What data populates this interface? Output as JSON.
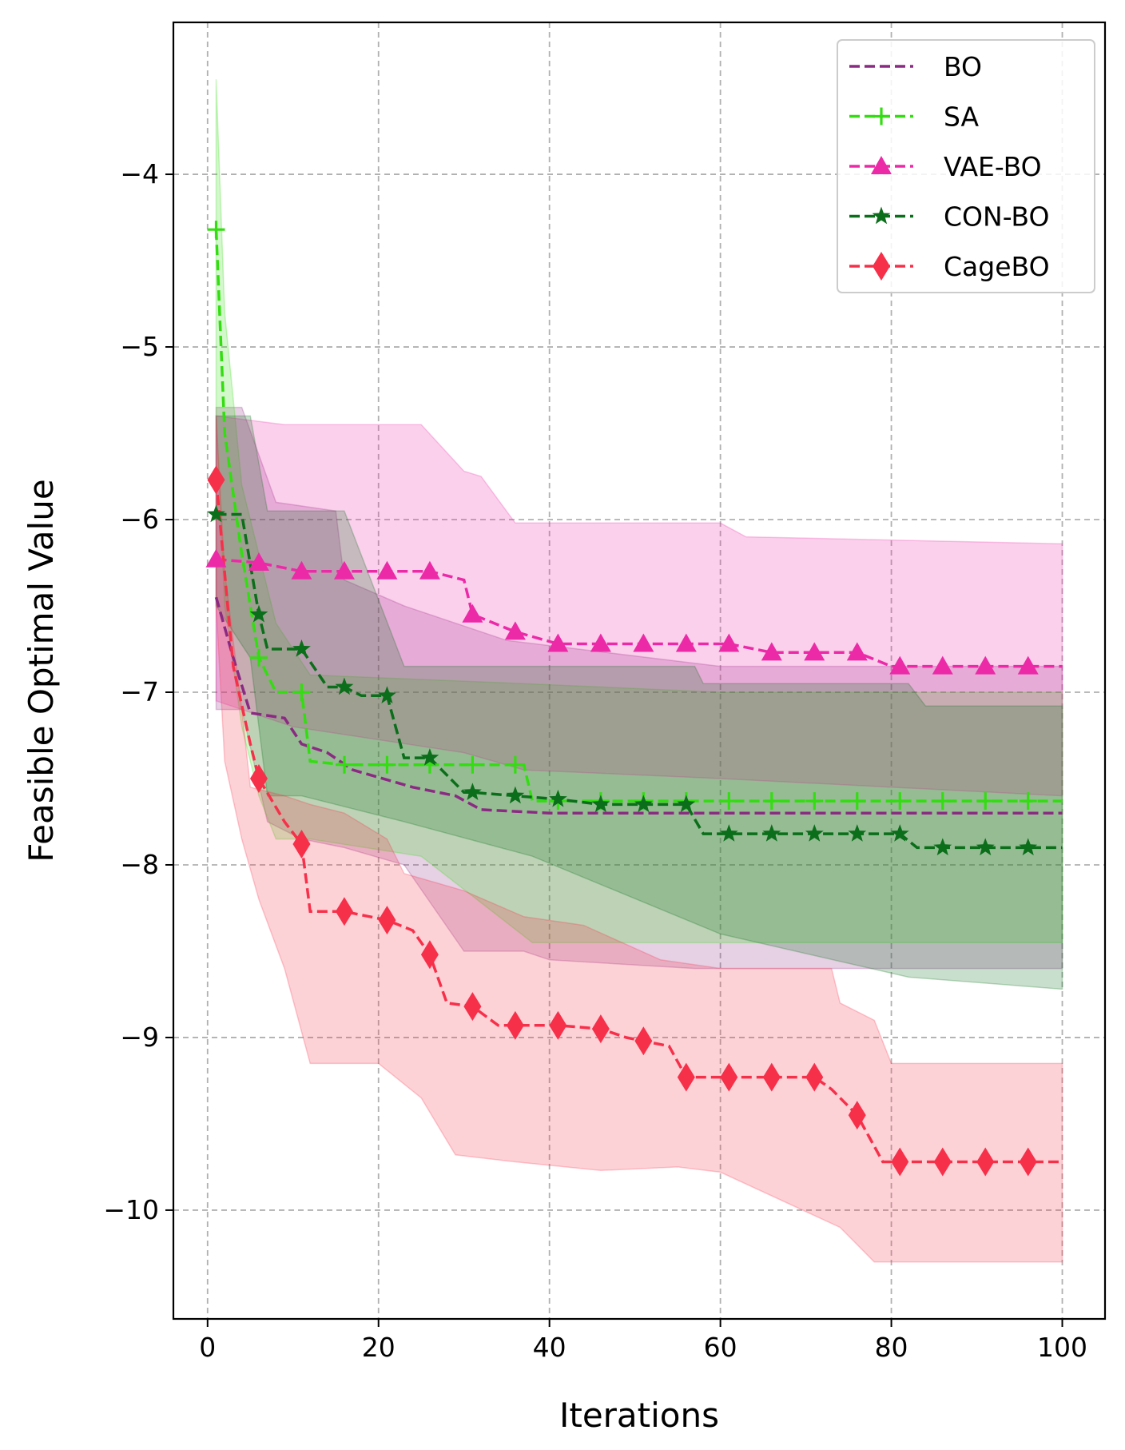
{
  "chart_data": {
    "type": "line",
    "title": "",
    "xlabel": "Iterations",
    "ylabel": "Feasible Optimal Value",
    "xlim": [
      -4,
      105
    ],
    "ylim": [
      -10.63,
      -3.12
    ],
    "xticks": [
      0,
      20,
      40,
      60,
      80,
      100
    ],
    "yticks": [
      -4,
      -5,
      -6,
      -7,
      -8,
      -9,
      -10
    ],
    "xtick_labels": [
      "0",
      "20",
      "40",
      "60",
      "80",
      "100"
    ],
    "ytick_labels": [
      "−4",
      "−5",
      "−6",
      "−7",
      "−8",
      "−9",
      "−10"
    ],
    "grid": true,
    "legend_position": "top-right",
    "series": [
      {
        "name": "BO",
        "color": "#8b2a82",
        "marker": "none",
        "line": "dashed",
        "points": [
          [
            1,
            -6.45
          ],
          [
            3,
            -6.8
          ],
          [
            5,
            -7.12
          ],
          [
            9,
            -7.15
          ],
          [
            11,
            -7.3
          ],
          [
            14,
            -7.35
          ],
          [
            17,
            -7.45
          ],
          [
            24,
            -7.55
          ],
          [
            29,
            -7.6
          ],
          [
            32,
            -7.68
          ],
          [
            40,
            -7.7
          ],
          [
            100,
            -7.7
          ]
        ],
        "band_upper": [
          [
            1,
            -5.35
          ],
          [
            4,
            -5.35
          ],
          [
            8,
            -5.9
          ],
          [
            15,
            -5.95
          ],
          [
            16,
            -6.35
          ],
          [
            23,
            -6.5
          ],
          [
            35,
            -6.7
          ],
          [
            60,
            -6.85
          ],
          [
            100,
            -6.85
          ]
        ],
        "band_lower": [
          [
            1,
            -7.1
          ],
          [
            4,
            -7.1
          ],
          [
            7,
            -7.75
          ],
          [
            11,
            -7.85
          ],
          [
            16,
            -7.9
          ],
          [
            23,
            -8.0
          ],
          [
            30,
            -8.5
          ],
          [
            37,
            -8.5
          ],
          [
            40,
            -8.55
          ],
          [
            57,
            -8.6
          ],
          [
            100,
            -8.6
          ]
        ]
      },
      {
        "name": "SA",
        "color": "#33dd11",
        "marker": "+",
        "line": "dashed",
        "points": [
          [
            1,
            -4.32
          ],
          [
            2,
            -5.5
          ],
          [
            4,
            -6.2
          ],
          [
            6,
            -6.8
          ],
          [
            8,
            -7.0
          ],
          [
            11,
            -7.0
          ],
          [
            12,
            -7.4
          ],
          [
            16,
            -7.42
          ],
          [
            21,
            -7.42
          ],
          [
            26,
            -7.42
          ],
          [
            31,
            -7.42
          ],
          [
            36,
            -7.42
          ],
          [
            37,
            -7.42
          ],
          [
            38,
            -7.63
          ],
          [
            41,
            -7.63
          ],
          [
            100,
            -7.63
          ]
        ],
        "band_upper": [
          [
            1,
            -3.45
          ],
          [
            2,
            -4.8
          ],
          [
            4,
            -5.8
          ],
          [
            6,
            -6.2
          ],
          [
            8,
            -6.6
          ],
          [
            12,
            -6.9
          ],
          [
            37,
            -6.95
          ],
          [
            60,
            -7.0
          ],
          [
            100,
            -7.0
          ]
        ],
        "band_lower": [
          [
            1,
            -5.4
          ],
          [
            2,
            -6.5
          ],
          [
            4,
            -7.2
          ],
          [
            6,
            -7.6
          ],
          [
            8,
            -7.85
          ],
          [
            12,
            -7.85
          ],
          [
            25,
            -7.95
          ],
          [
            38,
            -8.45
          ],
          [
            100,
            -8.45
          ]
        ]
      },
      {
        "name": "VAE-BO",
        "color": "#ec2aa8",
        "marker": "triangle",
        "line": "dashed",
        "points": [
          [
            1,
            -6.23
          ],
          [
            6,
            -6.25
          ],
          [
            11,
            -6.3
          ],
          [
            16,
            -6.3
          ],
          [
            21,
            -6.3
          ],
          [
            26,
            -6.3
          ],
          [
            30,
            -6.35
          ],
          [
            31,
            -6.55
          ],
          [
            36,
            -6.65
          ],
          [
            41,
            -6.72
          ],
          [
            46,
            -6.72
          ],
          [
            51,
            -6.72
          ],
          [
            56,
            -6.72
          ],
          [
            61,
            -6.72
          ],
          [
            66,
            -6.77
          ],
          [
            71,
            -6.77
          ],
          [
            76,
            -6.77
          ],
          [
            80,
            -6.85
          ],
          [
            81,
            -6.85
          ],
          [
            86,
            -6.85
          ],
          [
            91,
            -6.85
          ],
          [
            96,
            -6.85
          ],
          [
            100,
            -6.85
          ]
        ],
        "band_upper": [
          [
            1,
            -5.4
          ],
          [
            9,
            -5.45
          ],
          [
            25,
            -5.45
          ],
          [
            30,
            -5.72
          ],
          [
            32,
            -5.75
          ],
          [
            36,
            -6.02
          ],
          [
            60,
            -6.02
          ],
          [
            63,
            -6.1
          ],
          [
            100,
            -6.14
          ]
        ],
        "band_lower": [
          [
            1,
            -7.05
          ],
          [
            10,
            -7.2
          ],
          [
            30,
            -7.35
          ],
          [
            37,
            -7.45
          ],
          [
            60,
            -7.5
          ],
          [
            100,
            -7.6
          ]
        ]
      },
      {
        "name": "CON-BO",
        "color": "#0b6e1a",
        "marker": "star",
        "line": "dashed",
        "points": [
          [
            1,
            -5.97
          ],
          [
            4,
            -5.97
          ],
          [
            6,
            -6.55
          ],
          [
            7,
            -6.75
          ],
          [
            11,
            -6.75
          ],
          [
            14,
            -6.97
          ],
          [
            16,
            -6.97
          ],
          [
            18,
            -7.02
          ],
          [
            21,
            -7.02
          ],
          [
            23,
            -7.38
          ],
          [
            26,
            -7.38
          ],
          [
            30,
            -7.58
          ],
          [
            31,
            -7.58
          ],
          [
            36,
            -7.6
          ],
          [
            41,
            -7.62
          ],
          [
            46,
            -7.65
          ],
          [
            51,
            -7.65
          ],
          [
            56,
            -7.65
          ],
          [
            58,
            -7.82
          ],
          [
            61,
            -7.82
          ],
          [
            66,
            -7.82
          ],
          [
            71,
            -7.82
          ],
          [
            76,
            -7.82
          ],
          [
            81,
            -7.82
          ],
          [
            83,
            -7.9
          ],
          [
            86,
            -7.9
          ],
          [
            91,
            -7.9
          ],
          [
            96,
            -7.9
          ],
          [
            100,
            -7.9
          ]
        ],
        "band_upper": [
          [
            1,
            -5.4
          ],
          [
            5,
            -5.4
          ],
          [
            7,
            -5.95
          ],
          [
            16,
            -5.95
          ],
          [
            23,
            -6.85
          ],
          [
            57,
            -6.85
          ],
          [
            58,
            -6.95
          ],
          [
            82,
            -6.95
          ],
          [
            84,
            -7.08
          ],
          [
            100,
            -7.08
          ]
        ],
        "band_lower": [
          [
            1,
            -6.5
          ],
          [
            5,
            -6.8
          ],
          [
            7,
            -7.6
          ],
          [
            11,
            -7.6
          ],
          [
            23,
            -7.75
          ],
          [
            38,
            -7.95
          ],
          [
            60,
            -8.4
          ],
          [
            82,
            -8.65
          ],
          [
            100,
            -8.72
          ]
        ]
      },
      {
        "name": "CageBO",
        "color": "#f7304a",
        "marker": "diamond",
        "line": "dashed",
        "points": [
          [
            1,
            -5.77
          ],
          [
            3,
            -6.85
          ],
          [
            5,
            -7.3
          ],
          [
            6,
            -7.5
          ],
          [
            9,
            -7.75
          ],
          [
            11,
            -7.88
          ],
          [
            12,
            -8.27
          ],
          [
            16,
            -8.27
          ],
          [
            19,
            -8.3
          ],
          [
            21,
            -8.32
          ],
          [
            24,
            -8.38
          ],
          [
            26,
            -8.52
          ],
          [
            28,
            -8.8
          ],
          [
            31,
            -8.82
          ],
          [
            34,
            -8.93
          ],
          [
            36,
            -8.93
          ],
          [
            41,
            -8.93
          ],
          [
            46,
            -8.95
          ],
          [
            49,
            -9.0
          ],
          [
            51,
            -9.02
          ],
          [
            54,
            -9.05
          ],
          [
            56,
            -9.23
          ],
          [
            61,
            -9.23
          ],
          [
            66,
            -9.23
          ],
          [
            71,
            -9.23
          ],
          [
            73,
            -9.3
          ],
          [
            76,
            -9.45
          ],
          [
            79,
            -9.72
          ],
          [
            81,
            -9.72
          ],
          [
            86,
            -9.72
          ],
          [
            91,
            -9.72
          ],
          [
            96,
            -9.72
          ],
          [
            100,
            -9.72
          ]
        ],
        "band_upper": [
          [
            1,
            -5.4
          ],
          [
            2,
            -6.3
          ],
          [
            4,
            -7.1
          ],
          [
            5,
            -7.55
          ],
          [
            9,
            -7.6
          ],
          [
            12,
            -7.65
          ],
          [
            16,
            -7.7
          ],
          [
            21,
            -7.85
          ],
          [
            23,
            -8.05
          ],
          [
            30,
            -8.15
          ],
          [
            37,
            -8.3
          ],
          [
            44,
            -8.35
          ],
          [
            53,
            -8.55
          ],
          [
            60,
            -8.6
          ],
          [
            73,
            -8.6
          ],
          [
            74,
            -8.8
          ],
          [
            78,
            -8.9
          ],
          [
            80,
            -9.15
          ],
          [
            100,
            -9.15
          ]
        ],
        "band_lower": [
          [
            1,
            -6.5
          ],
          [
            2,
            -7.4
          ],
          [
            4,
            -7.85
          ],
          [
            6,
            -8.2
          ],
          [
            9,
            -8.6
          ],
          [
            12,
            -9.15
          ],
          [
            20,
            -9.15
          ],
          [
            25,
            -9.35
          ],
          [
            29,
            -9.68
          ],
          [
            36,
            -9.72
          ],
          [
            46,
            -9.77
          ],
          [
            55,
            -9.75
          ],
          [
            60,
            -9.78
          ],
          [
            74,
            -10.1
          ],
          [
            78,
            -10.3
          ],
          [
            100,
            -10.3
          ]
        ]
      }
    ]
  }
}
